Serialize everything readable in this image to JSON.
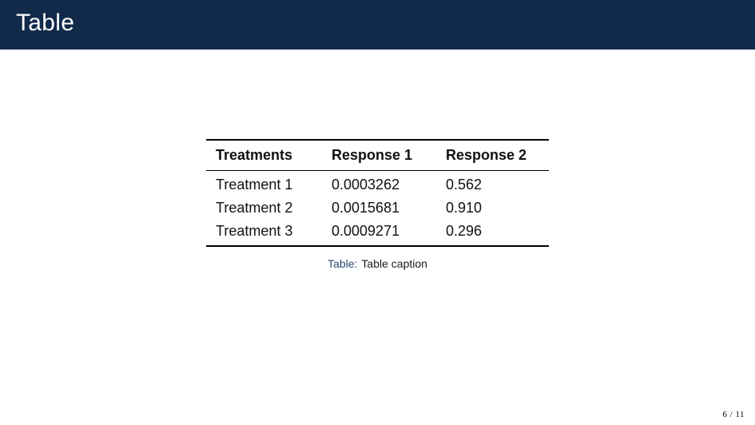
{
  "header": {
    "title": "Table",
    "bar_color": "#112a4a",
    "title_color": "#ffffff"
  },
  "table": {
    "headers": [
      "Treatments",
      "Response 1",
      "Response 2"
    ],
    "rows": [
      [
        "Treatment 1",
        "0.0003262",
        "0.562"
      ],
      [
        "Treatment 2",
        "0.0015681",
        "0.910"
      ],
      [
        "Treatment 3",
        "0.0009271",
        "0.296"
      ]
    ]
  },
  "caption": {
    "label": "Table:",
    "text": "Table caption",
    "label_color": "#264a70"
  },
  "footer": {
    "page": "6 / 11"
  }
}
